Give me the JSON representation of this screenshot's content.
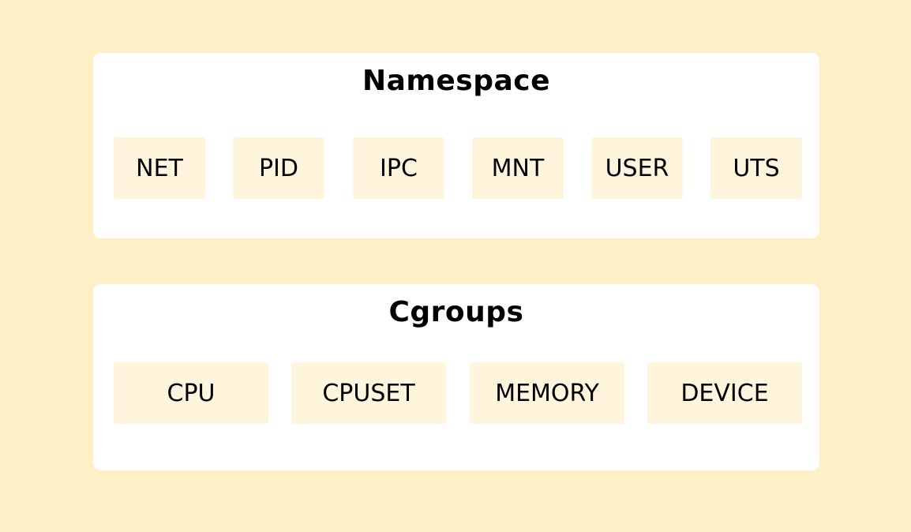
{
  "colors": {
    "background": "#FFEFC6",
    "panel": "#FFFFFF",
    "chip": "#FFF4DC",
    "text": "#000000"
  },
  "namespace": {
    "title": "Namespace",
    "items": [
      "NET",
      "PID",
      "IPC",
      "MNT",
      "USER",
      "UTS"
    ]
  },
  "cgroups": {
    "title": "Cgroups",
    "items": [
      "CPU",
      "CPUSET",
      "MEMORY",
      "DEVICE"
    ]
  }
}
